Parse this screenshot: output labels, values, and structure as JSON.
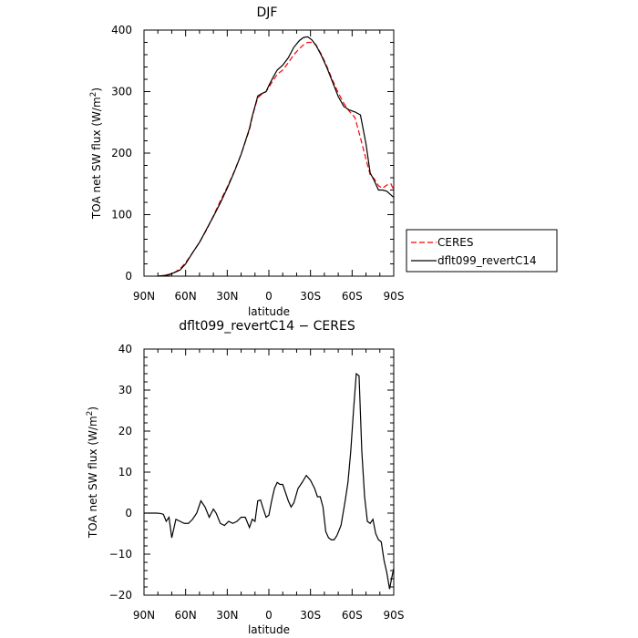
{
  "chart_data": [
    {
      "type": "line",
      "title": "DJF",
      "xlabel": "latitude",
      "ylabel": "TOA net SW flux (W/m²)",
      "ylabel_parts": {
        "pre": "TOA net SW flux (W/m",
        "sup": "2",
        "post": ")"
      },
      "xlim": [
        -90,
        90
      ],
      "ylim": [
        0,
        400
      ],
      "x_ticks": [
        -90,
        -60,
        -30,
        0,
        30,
        60,
        90
      ],
      "x_tick_labels": [
        "90N",
        "60N",
        "30N",
        "0",
        "30S",
        "60S",
        "90S"
      ],
      "y_ticks": [
        0,
        100,
        200,
        300,
        400
      ],
      "y_tick_labels": [
        "0",
        "100",
        "200",
        "300",
        "400"
      ],
      "legend_position": "right",
      "series": [
        {
          "name": "CERES",
          "color": "#ff0000",
          "dash": "dashed",
          "x": [
            -80,
            -76,
            -72,
            -68,
            -64,
            -60,
            -55,
            -50,
            -45,
            -40,
            -35,
            -30,
            -25,
            -20,
            -17,
            -14,
            -12,
            -10,
            -8,
            -5,
            -2,
            0,
            3,
            6,
            10,
            14,
            18,
            22,
            25,
            28,
            31,
            34,
            38,
            42,
            46,
            50,
            54,
            58,
            62,
            66,
            70,
            73,
            76,
            79,
            82,
            85,
            88,
            90
          ],
          "y": [
            0,
            1,
            3,
            6,
            12,
            22,
            38,
            55,
            75,
            98,
            122,
            145,
            170,
            198,
            218,
            238,
            258,
            275,
            290,
            296,
            300,
            307,
            318,
            328,
            335,
            347,
            360,
            370,
            376,
            380,
            380,
            376,
            360,
            340,
            318,
            298,
            281,
            268,
            258,
            225,
            190,
            165,
            158,
            147,
            143,
            148,
            150,
            140
          ]
        },
        {
          "name": "dflt099_revertC14",
          "color": "#000000",
          "dash": "solid",
          "x": [
            -80,
            -76,
            -72,
            -68,
            -64,
            -60,
            -55,
            -50,
            -45,
            -40,
            -35,
            -30,
            -25,
            -20,
            -17,
            -14,
            -12,
            -10,
            -8,
            -5,
            -2,
            0,
            3,
            6,
            10,
            14,
            18,
            22,
            25,
            28,
            31,
            34,
            38,
            42,
            46,
            50,
            54,
            58,
            62,
            66,
            70,
            73,
            76,
            79,
            82,
            85,
            88,
            90
          ],
          "y": [
            0,
            1,
            2,
            6,
            10,
            20,
            38,
            55,
            76,
            97,
            119,
            143,
            169,
            198,
            219,
            240,
            260,
            276,
            293,
            297,
            300,
            310,
            323,
            335,
            343,
            355,
            372,
            383,
            388,
            389,
            384,
            375,
            358,
            338,
            315,
            292,
            276,
            270,
            267,
            262,
            215,
            168,
            155,
            140,
            140,
            138,
            132,
            128
          ]
        }
      ]
    },
    {
      "type": "line",
      "title": "dflt099_revertC14 − CERES",
      "xlabel": "latitude",
      "ylabel": "TOA net SW flux (W/m²)",
      "ylabel_parts": {
        "pre": "TOA net SW flux (W/m",
        "sup": "2",
        "post": ")"
      },
      "xlim": [
        -90,
        90
      ],
      "ylim": [
        -20,
        40
      ],
      "x_ticks": [
        -90,
        -60,
        -30,
        0,
        30,
        60,
        90
      ],
      "x_tick_labels": [
        "90N",
        "60N",
        "30N",
        "0",
        "30S",
        "60S",
        "90S"
      ],
      "y_ticks": [
        -20,
        -10,
        0,
        10,
        20,
        30,
        40
      ],
      "y_tick_labels": [
        "−20",
        "−10",
        "0",
        "10",
        "20",
        "30",
        "40"
      ],
      "series": [
        {
          "color": "#000000",
          "dash": "solid",
          "x": [
            -90,
            -87,
            -84,
            -81,
            -78,
            -76,
            -74,
            -72,
            -70,
            -67,
            -64,
            -61,
            -58,
            -55,
            -52,
            -49,
            -46,
            -43,
            -40,
            -38,
            -35,
            -32,
            -29,
            -26,
            -23,
            -20,
            -17,
            -14,
            -12,
            -10,
            -8,
            -6,
            -4,
            -2,
            0,
            2,
            4,
            6,
            8,
            10,
            12,
            14,
            16,
            18,
            21,
            24,
            27,
            30,
            33,
            35,
            37,
            39,
            41,
            43,
            45,
            47,
            49,
            52,
            55,
            57,
            59,
            61,
            63,
            65,
            67,
            69,
            71,
            73,
            75,
            77,
            79,
            81,
            83,
            85,
            87,
            89,
            90
          ],
          "y": [
            0,
            0,
            0,
            0,
            -0.1,
            -0.3,
            -2,
            -1,
            -6,
            -1.5,
            -2,
            -2.5,
            -2.5,
            -1.5,
            0,
            3,
            1.5,
            -1,
            1,
            0,
            -2.5,
            -3,
            -2,
            -2.5,
            -2,
            -1,
            -1,
            -3.5,
            -1.5,
            -2,
            3,
            3.2,
            1,
            -1,
            -0.5,
            3,
            6,
            7.5,
            7,
            7,
            5,
            3,
            1.5,
            2.5,
            6,
            7.5,
            9.2,
            8,
            6,
            4,
            4,
            1.5,
            -4.5,
            -6,
            -6.5,
            -6.5,
            -5.5,
            -3,
            3,
            7.5,
            15,
            25,
            34,
            33.5,
            15,
            4,
            -2,
            -2.5,
            -1.5,
            -5,
            -6.5,
            -7,
            -11.5,
            -14.5,
            -18.5,
            -15,
            -13.5
          ]
        }
      ]
    }
  ]
}
